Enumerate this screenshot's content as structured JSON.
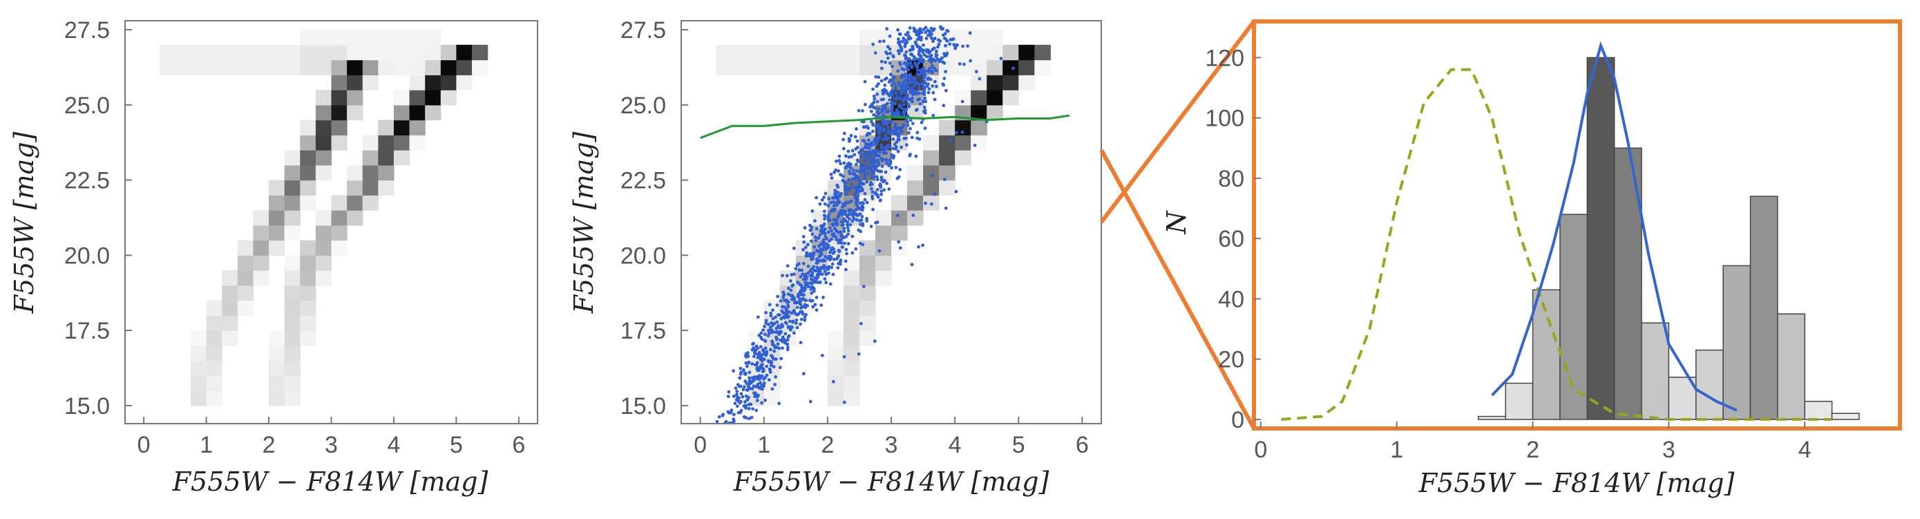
{
  "figure": {
    "colors": {
      "orange": "#ed7d31",
      "blue_points": "#2f5fd6",
      "blue_line": "#3366cc",
      "green_line": "#1f9a2e",
      "dashed_olive": "#9aa51e",
      "frame": "#777777"
    }
  },
  "chart_data": [
    {
      "type": "heatmap",
      "title": "",
      "xlabel": "F555W − F814W [mag]",
      "ylabel": "F555W [mag]",
      "xlim": [
        -0.3,
        6.3
      ],
      "ylim": [
        27.8,
        14.4
      ],
      "x_ticks": [
        "0",
        "1",
        "2",
        "3",
        "4",
        "5",
        "6"
      ],
      "y_ticks": [
        "15.0",
        "17.5",
        "20.0",
        "22.5",
        "25.0",
        "27.5"
      ],
      "sequences": [
        {
          "name": "blue sequence",
          "points": [
            [
              0.9,
              15.3
            ],
            [
              1.1,
              17.0
            ],
            [
              1.4,
              18.5
            ],
            [
              1.8,
              20.0
            ],
            [
              2.1,
              21.0
            ],
            [
              2.4,
              22.3
            ],
            [
              2.7,
              23.2
            ],
            [
              3.0,
              24.4
            ],
            [
              3.2,
              25.4
            ],
            [
              3.4,
              26.2
            ]
          ]
        },
        {
          "name": "red sequence",
          "points": [
            [
              2.2,
              15.5
            ],
            [
              2.4,
              17.3
            ],
            [
              2.5,
              18.7
            ],
            [
              2.8,
              20.3
            ],
            [
              3.2,
              21.3
            ],
            [
              3.6,
              22.3
            ],
            [
              3.9,
              23.5
            ],
            [
              4.1,
              24.1
            ],
            [
              4.4,
              24.9
            ],
            [
              4.8,
              25.9
            ],
            [
              5.2,
              26.8
            ]
          ]
        }
      ]
    },
    {
      "type": "scatter",
      "title": "",
      "xlabel": "F555W − F814W [mag]",
      "ylabel": "F555W [mag]",
      "xlim": [
        -0.3,
        6.3
      ],
      "ylim": [
        27.8,
        14.4
      ],
      "x_ticks": [
        "0",
        "1",
        "2",
        "3",
        "4",
        "5",
        "6"
      ],
      "y_ticks": [
        "15.0",
        "17.5",
        "20.0",
        "22.5",
        "25.0",
        "27.5"
      ],
      "scatter_track": [
        [
          0.5,
          14.4
        ],
        [
          1.0,
          16.5
        ],
        [
          1.5,
          18.5
        ],
        [
          2.0,
          20.3
        ],
        [
          2.4,
          22.0
        ],
        [
          2.8,
          23.6
        ],
        [
          3.1,
          25.0
        ],
        [
          3.4,
          26.3
        ],
        [
          3.6,
          27.6
        ]
      ],
      "completeness_line": {
        "x": [
          0,
          0.5,
          1.0,
          1.5,
          2.0,
          2.5,
          3.0,
          3.5,
          4.0,
          4.5,
          5.0,
          5.5,
          5.8
        ],
        "y": [
          23.9,
          24.3,
          24.3,
          24.4,
          24.45,
          24.5,
          24.6,
          24.55,
          24.6,
          24.5,
          24.55,
          24.55,
          24.65
        ]
      },
      "selection_box": {
        "y_range": [
          21.1,
          23.5
        ],
        "label": ""
      }
    },
    {
      "type": "bar",
      "title": "",
      "xlabel": "F555W − F814W [mag]",
      "ylabel": "N",
      "xlim": [
        -0.05,
        4.7
      ],
      "ylim": [
        -3,
        132
      ],
      "x_ticks": [
        "0",
        "1",
        "2",
        "3",
        "4"
      ],
      "y_ticks": [
        "0",
        "20",
        "40",
        "60",
        "80",
        "100",
        "120"
      ],
      "bin_edges": [
        1.6,
        1.8,
        2.0,
        2.2,
        2.4,
        2.6,
        2.8,
        3.0,
        3.2,
        3.4,
        3.6,
        3.8,
        4.0,
        4.2,
        4.4
      ],
      "series": [
        {
          "name": "histogram",
          "values": [
            1,
            12,
            43,
            68,
            120,
            90,
            32,
            14,
            23,
            51,
            74,
            35,
            6,
            2
          ]
        },
        {
          "name": "blue fit",
          "x": [
            1.7,
            1.85,
            2.0,
            2.15,
            2.3,
            2.4,
            2.5,
            2.6,
            2.7,
            2.85,
            3.0,
            3.2,
            3.35,
            3.5
          ],
          "y": [
            8,
            15,
            35,
            58,
            85,
            108,
            124,
            113,
            92,
            55,
            25,
            10,
            6,
            3
          ]
        },
        {
          "name": "dashed comparison",
          "x": [
            0.15,
            0.45,
            0.6,
            0.8,
            1.0,
            1.2,
            1.4,
            1.55,
            1.7,
            1.9,
            2.1,
            2.3,
            2.6,
            3.0,
            3.5,
            4.0,
            4.2
          ],
          "y": [
            0,
            1,
            6,
            30,
            72,
            105,
            116,
            116,
            100,
            62,
            35,
            10,
            2,
            0,
            0,
            0,
            0
          ]
        }
      ]
    }
  ]
}
